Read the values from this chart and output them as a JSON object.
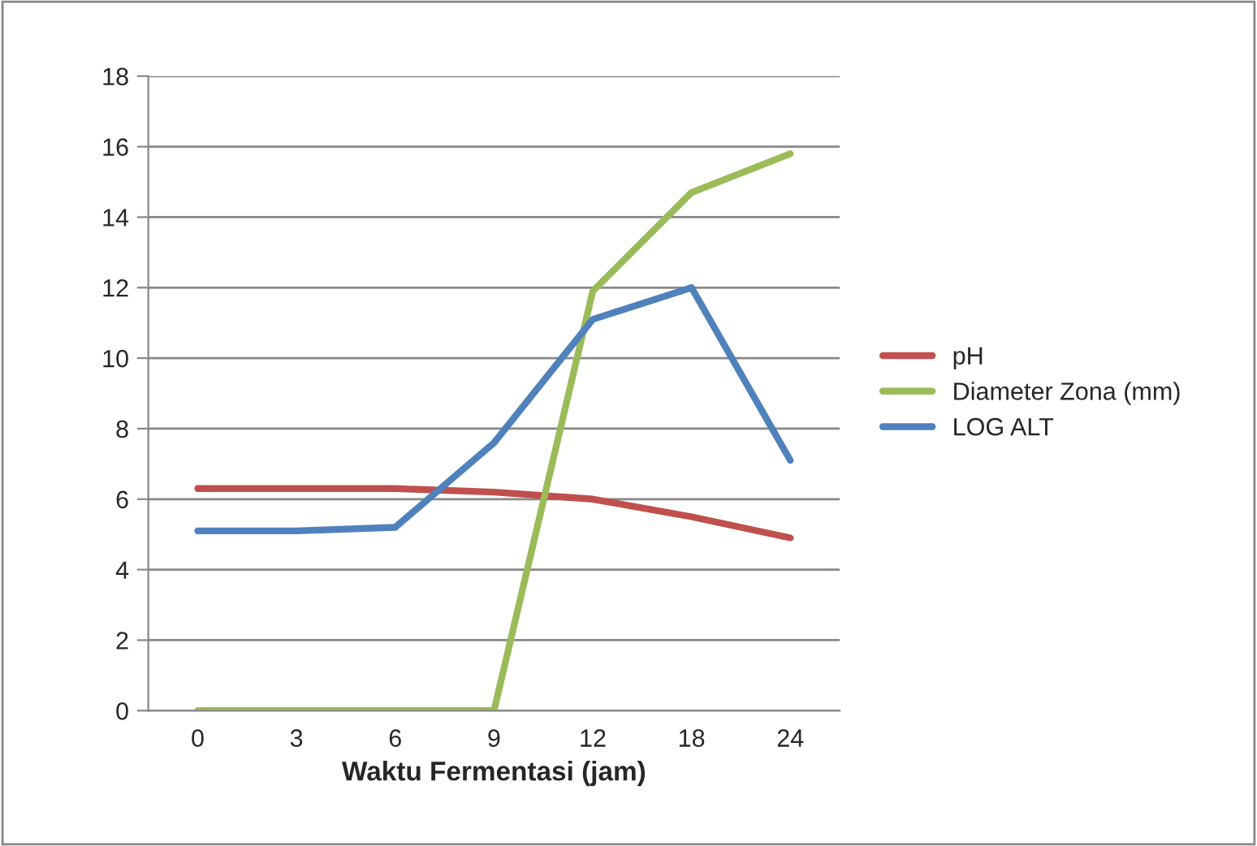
{
  "chart_data": {
    "type": "line",
    "xlabel": "Waktu Fermentasi (jam)",
    "categories": [
      "0",
      "3",
      "6",
      "9",
      "12",
      "18",
      "24"
    ],
    "series": [
      {
        "name": "pH",
        "color": "#c0504d",
        "values": [
          6.3,
          6.3,
          6.3,
          6.2,
          6.0,
          5.5,
          4.9
        ]
      },
      {
        "name": "Diameter Zona (mm)",
        "color": "#9bbb59",
        "values": [
          0,
          0,
          0,
          0,
          11.9,
          14.7,
          15.8
        ]
      },
      {
        "name": "LOG ALT",
        "color": "#4f81bd",
        "values": [
          5.1,
          5.1,
          5.2,
          7.6,
          11.1,
          12.0,
          7.1
        ]
      }
    ],
    "ylim": [
      0,
      18
    ],
    "yticks": [
      0,
      2,
      4,
      6,
      8,
      10,
      12,
      14,
      16,
      18
    ],
    "grid": "y",
    "legend": "right",
    "marker": "none",
    "line_style": "solid"
  }
}
